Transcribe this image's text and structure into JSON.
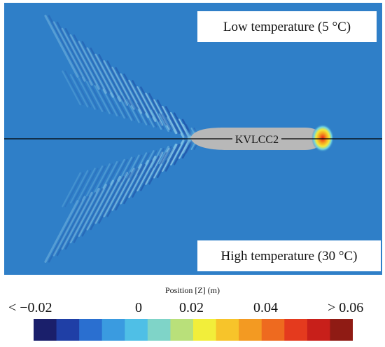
{
  "ship_label": "KVLCC2",
  "labels": {
    "low": "Low temperature (5 °C)",
    "high": "High temperature (30 °C)"
  },
  "colorbar": {
    "title": "Position [Z] (m)",
    "ticks": [
      "< −0.02",
      "0",
      "0.02",
      "0.04",
      "> 0.06"
    ],
    "colors": [
      "#1a1f6b",
      "#1f3fa6",
      "#2a6fd0",
      "#3a9be0",
      "#4fbfe6",
      "#7fd4c8",
      "#b9e07a",
      "#f2ee3a",
      "#f7c42a",
      "#f39a22",
      "#ee6a1f",
      "#e43a1e",
      "#c81f1a",
      "#8f1b14"
    ]
  },
  "colors": {
    "sea": "#2f7fc8",
    "hull": "#b8b8b8",
    "centerline": "#000000"
  }
}
